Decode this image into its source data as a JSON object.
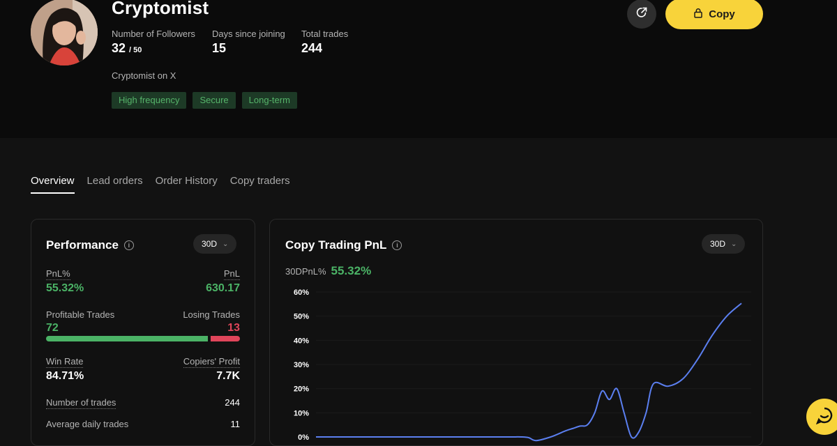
{
  "trader": {
    "name": "Cryptomist",
    "bio": "Cryptomist on X",
    "followers_label": "Number of Followers",
    "followers_value": "32",
    "followers_max": "/ 50",
    "days_label": "Days since joining",
    "days_value": "15",
    "trades_label": "Total trades",
    "trades_value": "244",
    "tags": [
      "High frequency",
      "Secure",
      "Long-term"
    ]
  },
  "actions": {
    "share_icon": "share-icon",
    "copy_label": "Copy",
    "copy_icon": "lock-icon"
  },
  "tabs": [
    {
      "label": "Overview",
      "active": true
    },
    {
      "label": "Lead orders",
      "active": false
    },
    {
      "label": "Order History",
      "active": false
    },
    {
      "label": "Copy traders",
      "active": false
    }
  ],
  "performance": {
    "title": "Performance",
    "period": "30D",
    "pnl_pct_label": "PnL%",
    "pnl_pct_value": "55.32%",
    "pnl_label": "PnL",
    "pnl_value": "630.17",
    "profitable_label": "Profitable Trades",
    "profitable_value": "72",
    "losing_label": "Losing Trades",
    "losing_value": "13",
    "win_ratio": 0.847,
    "win_rate_label": "Win Rate",
    "win_rate_value": "84.71%",
    "copiers_profit_label": "Copiers' Profit",
    "copiers_profit_value": "7.7K",
    "num_trades_label": "Number of trades",
    "num_trades_value": "244",
    "avg_daily_label": "Average daily trades",
    "avg_daily_value": "11"
  },
  "pnl_card": {
    "title": "Copy Trading PnL",
    "period": "30D",
    "sub_label": "30DPnL%",
    "sub_value": "55.32%"
  },
  "chart_data": {
    "type": "line",
    "title": "Copy Trading PnL",
    "xlabel": "",
    "ylabel": "",
    "ylim": [
      0,
      60
    ],
    "yticks": [
      "60%",
      "50%",
      "40%",
      "30%",
      "20%",
      "10%",
      "0%"
    ],
    "grid": true,
    "line_color": "#5b7ff0",
    "series": [
      {
        "x": [
          0,
          5,
          10,
          13,
          14,
          14.5,
          15,
          16,
          17,
          17.5,
          18,
          18.5,
          19,
          19.5,
          20,
          20.5,
          21,
          21.5,
          22,
          22.5,
          23,
          24,
          25,
          26,
          27,
          28,
          29
        ],
        "values": [
          0,
          0,
          0,
          0,
          0,
          -0.3,
          -1.5,
          0,
          2.5,
          3.5,
          4.5,
          5,
          10,
          19,
          15.5,
          20,
          10,
          0,
          2,
          10,
          22,
          21,
          24,
          32,
          42,
          50,
          55.3
        ]
      }
    ]
  },
  "support": {
    "icon": "chat-icon"
  }
}
